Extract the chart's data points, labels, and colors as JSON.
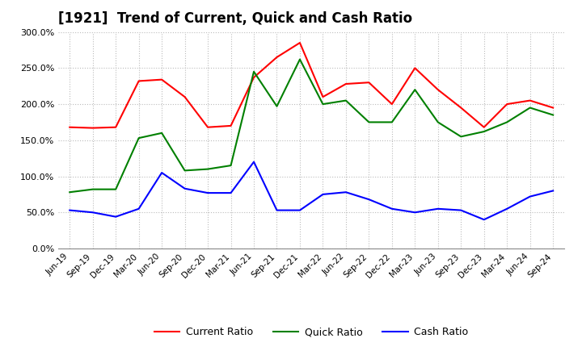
{
  "title": "[1921]  Trend of Current, Quick and Cash Ratio",
  "x_labels": [
    "Jun-19",
    "Sep-19",
    "Dec-19",
    "Mar-20",
    "Jun-20",
    "Sep-20",
    "Dec-20",
    "Mar-21",
    "Jun-21",
    "Sep-21",
    "Dec-21",
    "Mar-22",
    "Jun-22",
    "Sep-22",
    "Dec-22",
    "Mar-23",
    "Jun-23",
    "Sep-23",
    "Dec-23",
    "Mar-24",
    "Jun-24",
    "Sep-24"
  ],
  "current_ratio": [
    168,
    167,
    168,
    232,
    234,
    210,
    168,
    170,
    237,
    265,
    285,
    210,
    228,
    230,
    200,
    250,
    220,
    195,
    168,
    200,
    205,
    195
  ],
  "quick_ratio": [
    78,
    82,
    82,
    153,
    160,
    108,
    110,
    115,
    245,
    197,
    262,
    200,
    205,
    175,
    175,
    220,
    175,
    155,
    162,
    175,
    195,
    185
  ],
  "cash_ratio": [
    53,
    50,
    44,
    55,
    105,
    83,
    77,
    77,
    120,
    53,
    53,
    75,
    78,
    68,
    55,
    50,
    55,
    53,
    40,
    55,
    72,
    80
  ],
  "current_color": "#ff0000",
  "quick_color": "#008000",
  "cash_color": "#0000ff",
  "ylim": [
    0,
    300
  ],
  "yticks": [
    0,
    50,
    100,
    150,
    200,
    250,
    300
  ],
  "background_color": "#ffffff",
  "grid_color": "#bbbbbb",
  "title_fontsize": 12
}
